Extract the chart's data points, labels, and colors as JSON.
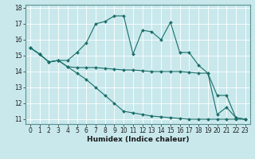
{
  "xlabel": "Humidex (Indice chaleur)",
  "bg_color": "#c8e8ec",
  "grid_color": "#b0d8dc",
  "line_color": "#1a6e68",
  "xlim_min": -0.5,
  "xlim_max": 23.5,
  "ylim_min": 10.7,
  "ylim_max": 18.2,
  "xticks": [
    0,
    1,
    2,
    3,
    4,
    5,
    6,
    7,
    8,
    9,
    10,
    11,
    12,
    13,
    14,
    15,
    16,
    17,
    18,
    19,
    20,
    21,
    22,
    23
  ],
  "yticks": [
    11,
    12,
    13,
    14,
    15,
    16,
    17,
    18
  ],
  "s1_x": [
    0,
    1,
    2,
    3,
    4,
    5,
    6,
    7,
    8,
    9,
    10,
    11,
    12,
    13,
    14,
    15,
    16,
    17,
    18,
    19,
    20,
    21,
    22,
    23
  ],
  "s1_y": [
    15.5,
    15.1,
    14.6,
    14.7,
    14.7,
    15.2,
    15.8,
    17.0,
    17.15,
    17.5,
    17.5,
    15.1,
    16.6,
    16.5,
    16.0,
    17.1,
    15.2,
    15.2,
    14.4,
    13.9,
    11.3,
    11.75,
    11.1,
    11.0
  ],
  "s2_x": [
    0,
    1,
    2,
    3,
    4,
    5,
    6,
    7,
    8,
    9,
    10,
    11,
    12,
    13,
    14,
    15,
    16,
    17,
    18,
    19,
    20,
    21,
    22,
    23
  ],
  "s2_y": [
    15.5,
    15.1,
    14.6,
    14.7,
    14.3,
    14.25,
    14.25,
    14.25,
    14.2,
    14.15,
    14.1,
    14.1,
    14.05,
    14.0,
    14.0,
    14.0,
    14.0,
    13.95,
    13.9,
    13.9,
    12.5,
    12.5,
    11.1,
    11.0
  ],
  "s3_x": [
    0,
    1,
    2,
    3,
    4,
    5,
    6,
    7,
    8,
    9,
    10,
    11,
    12,
    13,
    14,
    15,
    16,
    17,
    18,
    19,
    20,
    21,
    22,
    23
  ],
  "s3_y": [
    15.5,
    15.1,
    14.6,
    14.7,
    14.3,
    13.9,
    13.5,
    13.0,
    12.5,
    12.0,
    11.5,
    11.4,
    11.3,
    11.2,
    11.15,
    11.1,
    11.05,
    11.0,
    11.0,
    11.0,
    11.0,
    11.0,
    11.0,
    11.0
  ],
  "tick_fontsize": 5.5,
  "xlabel_fontsize": 6.5,
  "marker_size": 2.0,
  "line_width": 0.8
}
